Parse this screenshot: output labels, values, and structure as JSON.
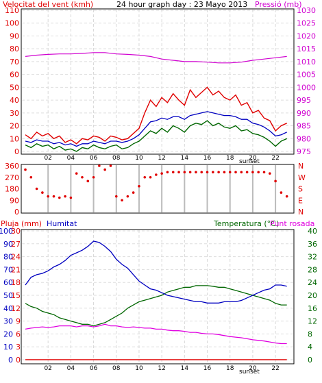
{
  "colors": {
    "wind": "#e00000",
    "gust": "#e00000",
    "wind_avg": "#0000c0",
    "wind_green": "#006600",
    "pressure": "#d000d0",
    "direction": "#e00000",
    "rain": "#e00000",
    "humidity": "#0000c0",
    "temperature": "#006600",
    "dewpoint": "#e000e0",
    "frame": "#000000",
    "grid": "#cccccc",
    "label_black": "#000000",
    "label_green": "#006600"
  },
  "header": {
    "wind_label": "Velocitat del vent (kmh)",
    "graph_title": "24 hour graph day : 23 Mayo 2013",
    "pressure_label": "Pressió (mb)"
  },
  "lower_header": {
    "rain_label": "Pluja (mm)",
    "humidity_label": "Humitat",
    "temp_label": "Temperatura (°C)",
    "dew_label": "Punt rosada"
  },
  "sunset_label": "sunset",
  "chart_data": [
    {
      "type": "line",
      "x_ticks": [
        "02",
        "04",
        "06",
        "08",
        "10",
        "12",
        "14",
        "16",
        "18",
        "20",
        "22"
      ],
      "ylim_left": [
        0,
        110
      ],
      "yticks_left": [
        "0",
        "10",
        "20",
        "30",
        "40",
        "50",
        "60",
        "70",
        "80",
        "90",
        "100",
        "110"
      ],
      "ylim_right": [
        975,
        1030
      ],
      "yticks_right": [
        "975",
        "980",
        "985",
        "990",
        "995",
        "1000",
        "1005",
        "1010",
        "1015",
        "1020",
        "1025",
        "1030"
      ],
      "grid": true,
      "series": [
        {
          "name": "Velocitat del vent (kmh)",
          "color": "wind",
          "axis": "left",
          "x": [
            0,
            0.5,
            1,
            1.5,
            2,
            2.5,
            3,
            3.5,
            4,
            4.5,
            5,
            5.5,
            6,
            6.5,
            7,
            7.5,
            8,
            8.5,
            9,
            9.5,
            10,
            10.5,
            11,
            11.5,
            12,
            12.5,
            13,
            13.5,
            14,
            14.5,
            15,
            15.5,
            16,
            16.5,
            17,
            17.5,
            18,
            18.5,
            19,
            19.5,
            20,
            20.5,
            21,
            21.5,
            22,
            22.5,
            23
          ],
          "y": [
            13,
            10,
            15,
            12,
            14,
            10,
            12,
            7,
            9,
            6,
            10,
            9,
            12,
            11,
            8,
            12,
            11,
            9,
            10,
            14,
            18,
            30,
            40,
            35,
            42,
            38,
            45,
            40,
            36,
            48,
            42,
            46,
            50,
            44,
            47,
            42,
            40,
            44,
            36,
            38,
            30,
            32,
            26,
            24,
            16,
            20,
            22
          ]
        },
        {
          "name": "Mitjana",
          "color": "wind_avg",
          "axis": "left",
          "x": [
            0,
            0.5,
            1,
            1.5,
            2,
            2.5,
            3,
            3.5,
            4,
            4.5,
            5,
            5.5,
            6,
            6.5,
            7,
            7.5,
            8,
            8.5,
            9,
            9.5,
            10,
            10.5,
            11,
            11.5,
            12,
            12.5,
            13,
            13.5,
            14,
            14.5,
            15,
            15.5,
            16,
            16.5,
            17,
            17.5,
            18,
            18.5,
            19,
            19.5,
            20,
            20.5,
            21,
            21.5,
            22,
            22.5,
            23
          ],
          "y": [
            8,
            7,
            9,
            8,
            8,
            6,
            7,
            5,
            6,
            4,
            6,
            6,
            8,
            7,
            6,
            8,
            8,
            7,
            8,
            10,
            13,
            18,
            23,
            24,
            26,
            25,
            27,
            27,
            25,
            28,
            29,
            30,
            31,
            30,
            29,
            28,
            28,
            27,
            25,
            25,
            22,
            21,
            19,
            16,
            12,
            13,
            15
          ]
        },
        {
          "name": "Mínima",
          "color": "wind_green",
          "axis": "left",
          "x": [
            0,
            0.5,
            1,
            1.5,
            2,
            2.5,
            3,
            3.5,
            4,
            4.5,
            5,
            5.5,
            6,
            6.5,
            7,
            7.5,
            8,
            8.5,
            9,
            9.5,
            10,
            10.5,
            11,
            11.5,
            12,
            12.5,
            13,
            13.5,
            14,
            14.5,
            15,
            15.5,
            16,
            16.5,
            17,
            17.5,
            18,
            18.5,
            19,
            19.5,
            20,
            20.5,
            21,
            21.5,
            22,
            22.5,
            23
          ],
          "y": [
            5,
            3,
            6,
            4,
            5,
            2,
            4,
            1,
            2,
            0,
            3,
            2,
            5,
            3,
            2,
            4,
            5,
            2,
            3,
            6,
            8,
            12,
            16,
            14,
            18,
            15,
            20,
            18,
            15,
            20,
            22,
            21,
            24,
            20,
            22,
            19,
            18,
            20,
            16,
            17,
            14,
            13,
            11,
            8,
            4,
            8,
            10
          ]
        },
        {
          "name": "Pressió (mb)",
          "color": "pressure",
          "axis": "right",
          "x": [
            0,
            1,
            2,
            3,
            4,
            5,
            6,
            7,
            8,
            9,
            10,
            11,
            12,
            13,
            14,
            15,
            16,
            17,
            18,
            19,
            20,
            21,
            22,
            23
          ],
          "y": [
            1012.0,
            1012.5,
            1012.8,
            1013.0,
            1013.0,
            1013.2,
            1013.5,
            1013.5,
            1013.0,
            1012.8,
            1012.5,
            1012.0,
            1011.0,
            1010.5,
            1010.0,
            1010.0,
            1009.8,
            1009.5,
            1009.5,
            1009.8,
            1010.5,
            1011.0,
            1011.5,
            1012.0
          ]
        }
      ]
    },
    {
      "type": "scatter",
      "x_ticks": [
        "02",
        "04",
        "06",
        "08",
        "10",
        "12",
        "14",
        "16",
        "18",
        "20",
        "22"
      ],
      "ylim": [
        0,
        360
      ],
      "yticks_left": [
        "0",
        "90",
        "180",
        "270",
        "360"
      ],
      "yticks_right": [
        "N",
        "E",
        "S",
        "W",
        "N"
      ],
      "series": [
        {
          "name": "Direcció",
          "color": "direction",
          "x": [
            0,
            0.5,
            1,
            1.5,
            2,
            2.5,
            3,
            3.5,
            4,
            4.5,
            5,
            5.5,
            6,
            6.5,
            7,
            7.5,
            8,
            8.5,
            9,
            9.5,
            10,
            10.5,
            11,
            11.5,
            12,
            12.5,
            13,
            13.5,
            14,
            14.5,
            15,
            15.5,
            16,
            16.5,
            17,
            17.5,
            18,
            18.5,
            19,
            19.5,
            20,
            20.5,
            21,
            21.5,
            22,
            22.5,
            23
          ],
          "y": [
            330,
            270,
            180,
            150,
            120,
            120,
            110,
            120,
            110,
            300,
            270,
            240,
            270,
            360,
            330,
            360,
            120,
            90,
            120,
            150,
            200,
            270,
            270,
            290,
            300,
            310,
            310,
            310,
            310,
            310,
            310,
            310,
            310,
            310,
            310,
            310,
            310,
            310,
            310,
            310,
            310,
            310,
            310,
            300,
            240,
            150,
            120
          ]
        }
      ]
    },
    {
      "type": "line",
      "x_ticks": [
        "02",
        "04",
        "06",
        "08",
        "10",
        "12",
        "14",
        "16",
        "18",
        "20",
        "22"
      ],
      "ylim_left": [
        0,
        100
      ],
      "yticks_left": [
        "0",
        "10",
        "20",
        "30",
        "40",
        "50",
        "60",
        "70",
        "80",
        "90",
        "100"
      ],
      "yticks_left_rain": [
        "0",
        "3",
        "6",
        "9",
        "12",
        "15",
        "18",
        "21",
        "24",
        "27",
        "30"
      ],
      "ylim_right": [
        0,
        40
      ],
      "yticks_right": [
        "0",
        "4",
        "8",
        "12",
        "16",
        "20",
        "24",
        "28",
        "32",
        "36",
        "40"
      ],
      "grid": true,
      "series": [
        {
          "name": "Humitat",
          "color": "humidity",
          "axis": "left",
          "x": [
            0,
            0.5,
            1,
            1.5,
            2,
            2.5,
            3,
            3.5,
            4,
            4.5,
            5,
            5.5,
            6,
            6.5,
            7,
            7.5,
            8,
            8.5,
            9,
            9.5,
            10,
            10.5,
            11,
            11.5,
            12,
            12.5,
            13,
            13.5,
            14,
            14.5,
            15,
            15.5,
            16,
            16.5,
            17,
            17.5,
            18,
            18.5,
            19,
            19.5,
            20,
            20.5,
            21,
            21.5,
            22,
            22.5,
            23
          ],
          "y": [
            58,
            64,
            66,
            67,
            69,
            72,
            74,
            77,
            81,
            83,
            85,
            88,
            92,
            91,
            88,
            84,
            78,
            74,
            71,
            66,
            61,
            58,
            55,
            54,
            52,
            50,
            49,
            48,
            47,
            46,
            45,
            45,
            44,
            44,
            44,
            45,
            45,
            45,
            46,
            48,
            50,
            52,
            54,
            55,
            58,
            58,
            57
          ]
        },
        {
          "name": "Temperatura (°C)",
          "color": "temperature",
          "axis": "right",
          "x": [
            0,
            0.5,
            1,
            1.5,
            2,
            2.5,
            3,
            3.5,
            4,
            4.5,
            5,
            5.5,
            6,
            6.5,
            7,
            7.5,
            8,
            8.5,
            9,
            9.5,
            10,
            10.5,
            11,
            11.5,
            12,
            12.5,
            13,
            13.5,
            14,
            14.5,
            15,
            15.5,
            16,
            16.5,
            17,
            17.5,
            18,
            18.5,
            19,
            19.5,
            20,
            20.5,
            21,
            21.5,
            22,
            22.5,
            23
          ],
          "y": [
            17.5,
            16.5,
            16.0,
            15.0,
            14.5,
            14.0,
            13.0,
            12.5,
            12.0,
            11.5,
            11.0,
            11.0,
            10.5,
            11.0,
            11.5,
            12.5,
            13.5,
            14.5,
            16.0,
            17.0,
            18.0,
            18.5,
            19.0,
            19.5,
            20.0,
            21.0,
            21.5,
            22.0,
            22.5,
            22.5,
            23.0,
            23.0,
            23.0,
            22.8,
            22.5,
            22.5,
            22.0,
            21.5,
            21.0,
            20.5,
            20.0,
            19.5,
            19.0,
            18.5,
            17.5,
            17.0,
            17.0
          ]
        },
        {
          "name": "Punt rosada",
          "color": "dewpoint",
          "axis": "right",
          "x": [
            0,
            0.5,
            1,
            1.5,
            2,
            2.5,
            3,
            3.5,
            4,
            4.5,
            5,
            5.5,
            6,
            6.5,
            7,
            7.5,
            8,
            8.5,
            9,
            9.5,
            10,
            10.5,
            11,
            11.5,
            12,
            12.5,
            13,
            13.5,
            14,
            14.5,
            15,
            15.5,
            16,
            16.5,
            17,
            17.5,
            18,
            18.5,
            19,
            19.5,
            20,
            20.5,
            21,
            21.5,
            22,
            22.5,
            23
          ],
          "y": [
            9.5,
            9.8,
            10.0,
            10.2,
            10.0,
            10.2,
            10.5,
            10.5,
            10.5,
            10.2,
            10.5,
            10.5,
            10.2,
            10.5,
            11.0,
            10.5,
            10.5,
            10.2,
            10.0,
            10.2,
            10.0,
            9.8,
            9.8,
            9.5,
            9.5,
            9.2,
            9.0,
            9.0,
            8.8,
            8.5,
            8.5,
            8.2,
            8.0,
            8.0,
            7.8,
            7.5,
            7.2,
            7.0,
            6.8,
            6.5,
            6.2,
            6.0,
            5.8,
            5.5,
            5.2,
            5.0,
            5.0
          ]
        },
        {
          "name": "Pluja (mm)",
          "color": "rain",
          "axis": "left",
          "x": [
            0,
            23
          ],
          "y": [
            0,
            0
          ]
        }
      ]
    }
  ]
}
